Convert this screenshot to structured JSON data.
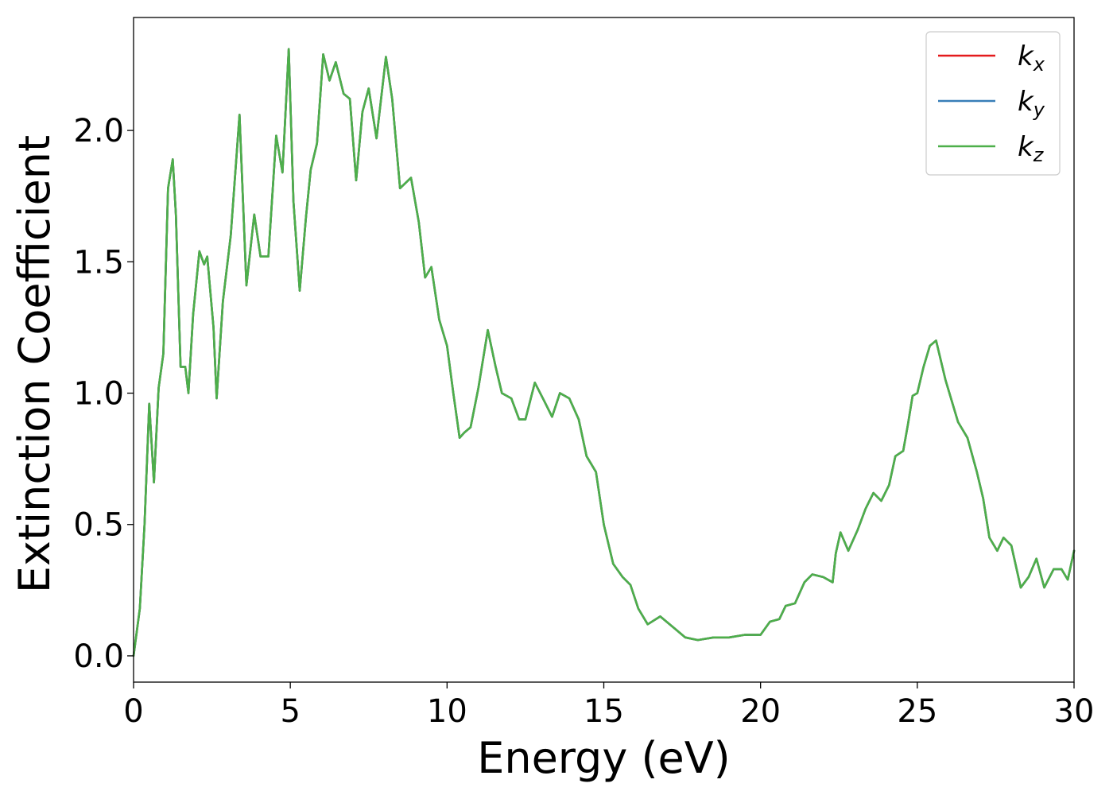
{
  "chart_data": {
    "type": "line",
    "title": "",
    "xlabel": "Energy (eV)",
    "ylabel": "Extinction Coefficient",
    "xlim": [
      0,
      30
    ],
    "ylim": [
      -0.1,
      2.43
    ],
    "xticks": [
      0,
      5,
      10,
      15,
      20,
      25,
      30
    ],
    "xtick_labels": [
      "0",
      "5",
      "10",
      "15",
      "20",
      "25",
      "30"
    ],
    "yticks": [
      0.0,
      0.5,
      1.0,
      1.5,
      2.0
    ],
    "ytick_labels": [
      "0.0",
      "0.5",
      "1.0",
      "1.5",
      "2.0"
    ],
    "grid": false,
    "legend_position": "top-right",
    "x": [
      0,
      0.2,
      0.35,
      0.5,
      0.65,
      0.8,
      0.95,
      1.1,
      1.25,
      1.35,
      1.5,
      1.65,
      1.75,
      1.9,
      2.1,
      2.25,
      2.35,
      2.55,
      2.65,
      2.85,
      3.1,
      3.38,
      3.6,
      3.85,
      4.05,
      4.3,
      4.55,
      4.75,
      4.95,
      5.1,
      5.3,
      5.5,
      5.65,
      5.85,
      6.05,
      6.25,
      6.45,
      6.7,
      6.9,
      7.1,
      7.3,
      7.5,
      7.75,
      8.05,
      8.25,
      8.5,
      8.85,
      9.1,
      9.3,
      9.5,
      9.75,
      10.0,
      10.2,
      10.4,
      10.55,
      10.75,
      11.0,
      11.3,
      11.55,
      11.75,
      12.05,
      12.3,
      12.5,
      12.8,
      13.1,
      13.35,
      13.6,
      13.9,
      14.2,
      14.45,
      14.75,
      15.0,
      15.3,
      15.6,
      15.85,
      16.1,
      16.4,
      16.8,
      17.3,
      17.6,
      18.0,
      18.5,
      19.0,
      19.5,
      20.0,
      20.3,
      20.6,
      20.8,
      21.1,
      21.4,
      21.65,
      22.0,
      22.3,
      22.4,
      22.55,
      22.8,
      23.1,
      23.35,
      23.6,
      23.85,
      24.1,
      24.3,
      24.55,
      24.7,
      24.85,
      25.0,
      25.2,
      25.4,
      25.6,
      25.9,
      26.3,
      26.6,
      26.9,
      27.1,
      27.3,
      27.55,
      27.75,
      28.0,
      28.3,
      28.55,
      28.8,
      29.05,
      29.35,
      29.6,
      29.8,
      30.0
    ],
    "series": [
      {
        "name": "k_x",
        "label_main": "k",
        "label_sub": "x",
        "color": "#e41a1c",
        "y": [
          0.0,
          0.18,
          0.5,
          0.96,
          0.66,
          1.02,
          1.15,
          1.78,
          1.89,
          1.68,
          1.1,
          1.1,
          1.0,
          1.3,
          1.54,
          1.49,
          1.52,
          1.25,
          0.98,
          1.35,
          1.6,
          2.06,
          1.41,
          1.68,
          1.52,
          1.52,
          1.98,
          1.84,
          2.31,
          1.73,
          1.39,
          1.67,
          1.85,
          1.95,
          2.29,
          2.19,
          2.26,
          2.14,
          2.12,
          1.81,
          2.07,
          2.16,
          1.97,
          2.28,
          2.12,
          1.78,
          1.82,
          1.65,
          1.44,
          1.48,
          1.28,
          1.18,
          1.0,
          0.83,
          0.85,
          0.87,
          1.02,
          1.24,
          1.1,
          1.0,
          0.98,
          0.9,
          0.9,
          1.04,
          0.97,
          0.91,
          1.0,
          0.98,
          0.9,
          0.76,
          0.7,
          0.5,
          0.35,
          0.3,
          0.27,
          0.18,
          0.12,
          0.15,
          0.1,
          0.07,
          0.06,
          0.07,
          0.07,
          0.08,
          0.08,
          0.13,
          0.14,
          0.19,
          0.2,
          0.28,
          0.31,
          0.3,
          0.28,
          0.39,
          0.47,
          0.4,
          0.48,
          0.56,
          0.62,
          0.59,
          0.65,
          0.76,
          0.78,
          0.88,
          0.99,
          1.0,
          1.1,
          1.18,
          1.2,
          1.05,
          0.89,
          0.83,
          0.7,
          0.6,
          0.45,
          0.4,
          0.45,
          0.42,
          0.26,
          0.3,
          0.37,
          0.26,
          0.33,
          0.33,
          0.29,
          0.4
        ]
      },
      {
        "name": "k_y",
        "label_main": "k",
        "label_sub": "y",
        "color": "#377eb8",
        "y": [
          0.0,
          0.18,
          0.5,
          0.96,
          0.66,
          1.02,
          1.15,
          1.78,
          1.89,
          1.68,
          1.1,
          1.1,
          1.0,
          1.3,
          1.54,
          1.49,
          1.52,
          1.25,
          0.98,
          1.35,
          1.6,
          2.06,
          1.41,
          1.68,
          1.52,
          1.52,
          1.98,
          1.84,
          2.31,
          1.73,
          1.39,
          1.67,
          1.85,
          1.95,
          2.29,
          2.19,
          2.26,
          2.14,
          2.12,
          1.81,
          2.07,
          2.16,
          1.97,
          2.28,
          2.12,
          1.78,
          1.82,
          1.65,
          1.44,
          1.48,
          1.28,
          1.18,
          1.0,
          0.83,
          0.85,
          0.87,
          1.02,
          1.24,
          1.1,
          1.0,
          0.98,
          0.9,
          0.9,
          1.04,
          0.97,
          0.91,
          1.0,
          0.98,
          0.9,
          0.76,
          0.7,
          0.5,
          0.35,
          0.3,
          0.27,
          0.18,
          0.12,
          0.15,
          0.1,
          0.07,
          0.06,
          0.07,
          0.07,
          0.08,
          0.08,
          0.13,
          0.14,
          0.19,
          0.2,
          0.28,
          0.31,
          0.3,
          0.28,
          0.39,
          0.47,
          0.4,
          0.48,
          0.56,
          0.62,
          0.59,
          0.65,
          0.76,
          0.78,
          0.88,
          0.99,
          1.0,
          1.1,
          1.18,
          1.2,
          1.05,
          0.89,
          0.83,
          0.7,
          0.6,
          0.45,
          0.4,
          0.45,
          0.42,
          0.26,
          0.3,
          0.37,
          0.26,
          0.33,
          0.33,
          0.29,
          0.4
        ]
      },
      {
        "name": "k_z",
        "label_main": "k",
        "label_sub": "z",
        "color": "#4daf4a",
        "y": [
          0.0,
          0.18,
          0.5,
          0.96,
          0.66,
          1.02,
          1.15,
          1.78,
          1.89,
          1.68,
          1.1,
          1.1,
          1.0,
          1.3,
          1.54,
          1.49,
          1.52,
          1.25,
          0.98,
          1.35,
          1.6,
          2.06,
          1.41,
          1.68,
          1.52,
          1.52,
          1.98,
          1.84,
          2.31,
          1.73,
          1.39,
          1.67,
          1.85,
          1.95,
          2.29,
          2.19,
          2.26,
          2.14,
          2.12,
          1.81,
          2.07,
          2.16,
          1.97,
          2.28,
          2.12,
          1.78,
          1.82,
          1.65,
          1.44,
          1.48,
          1.28,
          1.18,
          1.0,
          0.83,
          0.85,
          0.87,
          1.02,
          1.24,
          1.1,
          1.0,
          0.98,
          0.9,
          0.9,
          1.04,
          0.97,
          0.91,
          1.0,
          0.98,
          0.9,
          0.76,
          0.7,
          0.5,
          0.35,
          0.3,
          0.27,
          0.18,
          0.12,
          0.15,
          0.1,
          0.07,
          0.06,
          0.07,
          0.07,
          0.08,
          0.08,
          0.13,
          0.14,
          0.19,
          0.2,
          0.28,
          0.31,
          0.3,
          0.28,
          0.39,
          0.47,
          0.4,
          0.48,
          0.56,
          0.62,
          0.59,
          0.65,
          0.76,
          0.78,
          0.88,
          0.99,
          1.0,
          1.1,
          1.18,
          1.2,
          1.05,
          0.89,
          0.83,
          0.7,
          0.6,
          0.45,
          0.4,
          0.45,
          0.42,
          0.26,
          0.3,
          0.37,
          0.26,
          0.33,
          0.33,
          0.29,
          0.4
        ]
      }
    ]
  }
}
